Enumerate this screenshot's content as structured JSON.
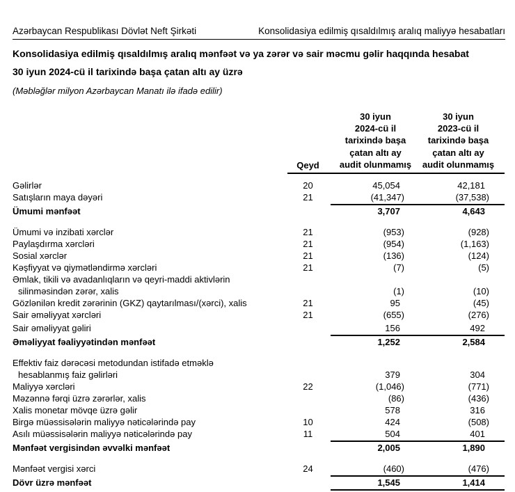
{
  "header": {
    "left": "Azərbaycan Respublikası Dövlət Neft Şirkəti",
    "right": "Konsolidasiya edilmiş qısaldılmış aralıq maliyyə hesabatları"
  },
  "title": {
    "line1": "Konsolidasiya edilmiş qısaldılmış aralıq mənfəət və ya zərər və sair məcmu gəlir haqqında hesabat",
    "line2": "30 iyun 2024-cü il tarixində başa çatan altı ay üzrə",
    "note": "(Məbləğlər milyon Azərbaycan Manatı ilə ifadə edilir)"
  },
  "colors": {
    "text": "#000000",
    "background": "#ffffff",
    "rule": "#000000"
  },
  "table": {
    "header": {
      "qeyd": "Qeyd",
      "col_2024_lines": [
        "30 iyun",
        "2024-cü il",
        "tarixində başa",
        "çatan altı ay",
        "audit olunmamış"
      ],
      "col_2023_lines": [
        "30 iyun",
        "2023-cü il",
        "tarixində başa",
        "çatan altı ay",
        "audit olunmamış"
      ]
    },
    "rows": [
      {
        "label": "Gəlirlər",
        "qeyd": "20",
        "v2024": "45,054",
        "v2023": "42,181"
      },
      {
        "label": "Satışların maya dəyəri",
        "qeyd": "21",
        "v2024": "(41,347)",
        "v2023": "(37,538)",
        "rule_below": true
      },
      {
        "label": "Ümumi mənfəət",
        "qeyd": "",
        "v2024": "3,707",
        "v2023": "4,643",
        "bold": true
      },
      {
        "spacer": true
      },
      {
        "label": "Ümumi və inzibati xərclər",
        "qeyd": "21",
        "v2024": "(953)",
        "v2023": "(928)"
      },
      {
        "label": "Paylaşdırma xərcləri",
        "qeyd": "21",
        "v2024": "(954)",
        "v2023": "(1,163)"
      },
      {
        "label": "Sosial xərclər",
        "qeyd": "21",
        "v2024": "(136)",
        "v2023": "(124)"
      },
      {
        "label": "Kəşfiyyat və qiymətləndirmə xərcləri",
        "qeyd": "21",
        "v2024": "(7)",
        "v2023": "(5)"
      },
      {
        "label_lines": [
          "Əmlak, tikili və avadanlıqların və qeyri-maddi aktivlərin",
          "silinməsindən zərər, xalis"
        ],
        "qeyd": "",
        "v2024": "(1)",
        "v2023": "(10)"
      },
      {
        "label": "Gözlənilən kredit zərərinin (GKZ) qaytarılması/(xərci), xalis",
        "qeyd": "21",
        "v2024": "95",
        "v2023": "(45)"
      },
      {
        "label": "Sair əməliyyat xərcləri",
        "qeyd": "21",
        "v2024": "(655)",
        "v2023": "(276)"
      },
      {
        "label": "Sair əməliyyat gəliri",
        "qeyd": "",
        "v2024": "156",
        "v2023": "492",
        "rule_below": true,
        "gap_before": 2
      },
      {
        "label": "Əməliyyat fəaliyyətindən mənfəət",
        "qeyd": "",
        "v2024": "1,252",
        "v2023": "2,584",
        "bold": true
      },
      {
        "spacer": true
      },
      {
        "label_lines": [
          "Effektiv faiz dərəcəsi metodundan istifadə etməklə",
          "hesablanmış faiz gəlirləri"
        ],
        "qeyd": "",
        "v2024": "379",
        "v2023": "304"
      },
      {
        "label": "Maliyyə xərcləri",
        "qeyd": "22",
        "v2024": "(1,046)",
        "v2023": "(771)"
      },
      {
        "label": "Məzənnə fərqi üzrə zərərlər, xalis",
        "qeyd": "",
        "v2024": "(86)",
        "v2023": "(436)"
      },
      {
        "label": "Xalis monetar mövqe üzrə gəlir",
        "qeyd": "",
        "v2024": "578",
        "v2023": "316"
      },
      {
        "label": "Birgə müəssisələrin maliyyə nəticələrində pay",
        "qeyd": "10",
        "v2024": "424",
        "v2023": "(508)"
      },
      {
        "label": "Asılı müəssisələrin maliyyə nəticələrində pay",
        "qeyd": "11",
        "v2024": "504",
        "v2023": "401",
        "rule_below": true
      },
      {
        "label": "Mənfəət vergisindən əvvəlki mənfəət",
        "qeyd": "",
        "v2024": "2,005",
        "v2023": "1,890",
        "bold": true
      },
      {
        "spacer": true
      },
      {
        "label": "Mənfəət vergisi xərci",
        "qeyd": "24",
        "v2024": "(460)",
        "v2023": "(476)",
        "rule_below": true
      },
      {
        "label": "Dövr üzrə mənfəət",
        "qeyd": "",
        "v2024": "1,545",
        "v2023": "1,414",
        "bold": true,
        "rule_below": true
      }
    ]
  }
}
